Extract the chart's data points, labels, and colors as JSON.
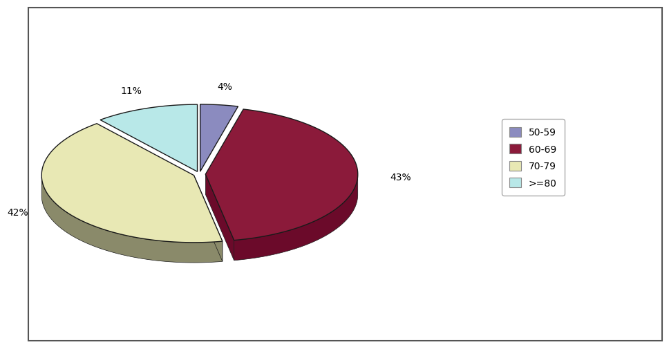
{
  "labels": [
    "50-59",
    "60-69",
    "70-79",
    ">=80"
  ],
  "values": [
    4,
    43,
    42,
    11
  ],
  "colors_top": [
    "#8b8bbf",
    "#8b1a3a",
    "#e8e8b4",
    "#b8e8e8"
  ],
  "colors_side": [
    "#6b6b9f",
    "#6b0a2a",
    "#8a8a6a",
    "#70a0a8"
  ],
  "edge_color": "#1a1a1a",
  "legend_colors": [
    "#8b8bbf",
    "#8b1a3a",
    "#e8e8b4",
    "#b8e8e8"
  ],
  "legend_labels": [
    "50-59",
    "60-69",
    "70-79",
    ">=80"
  ],
  "background_color": "#ffffff",
  "figure_width": 9.26,
  "figure_height": 4.86,
  "startangle": 90,
  "depth": 0.06
}
